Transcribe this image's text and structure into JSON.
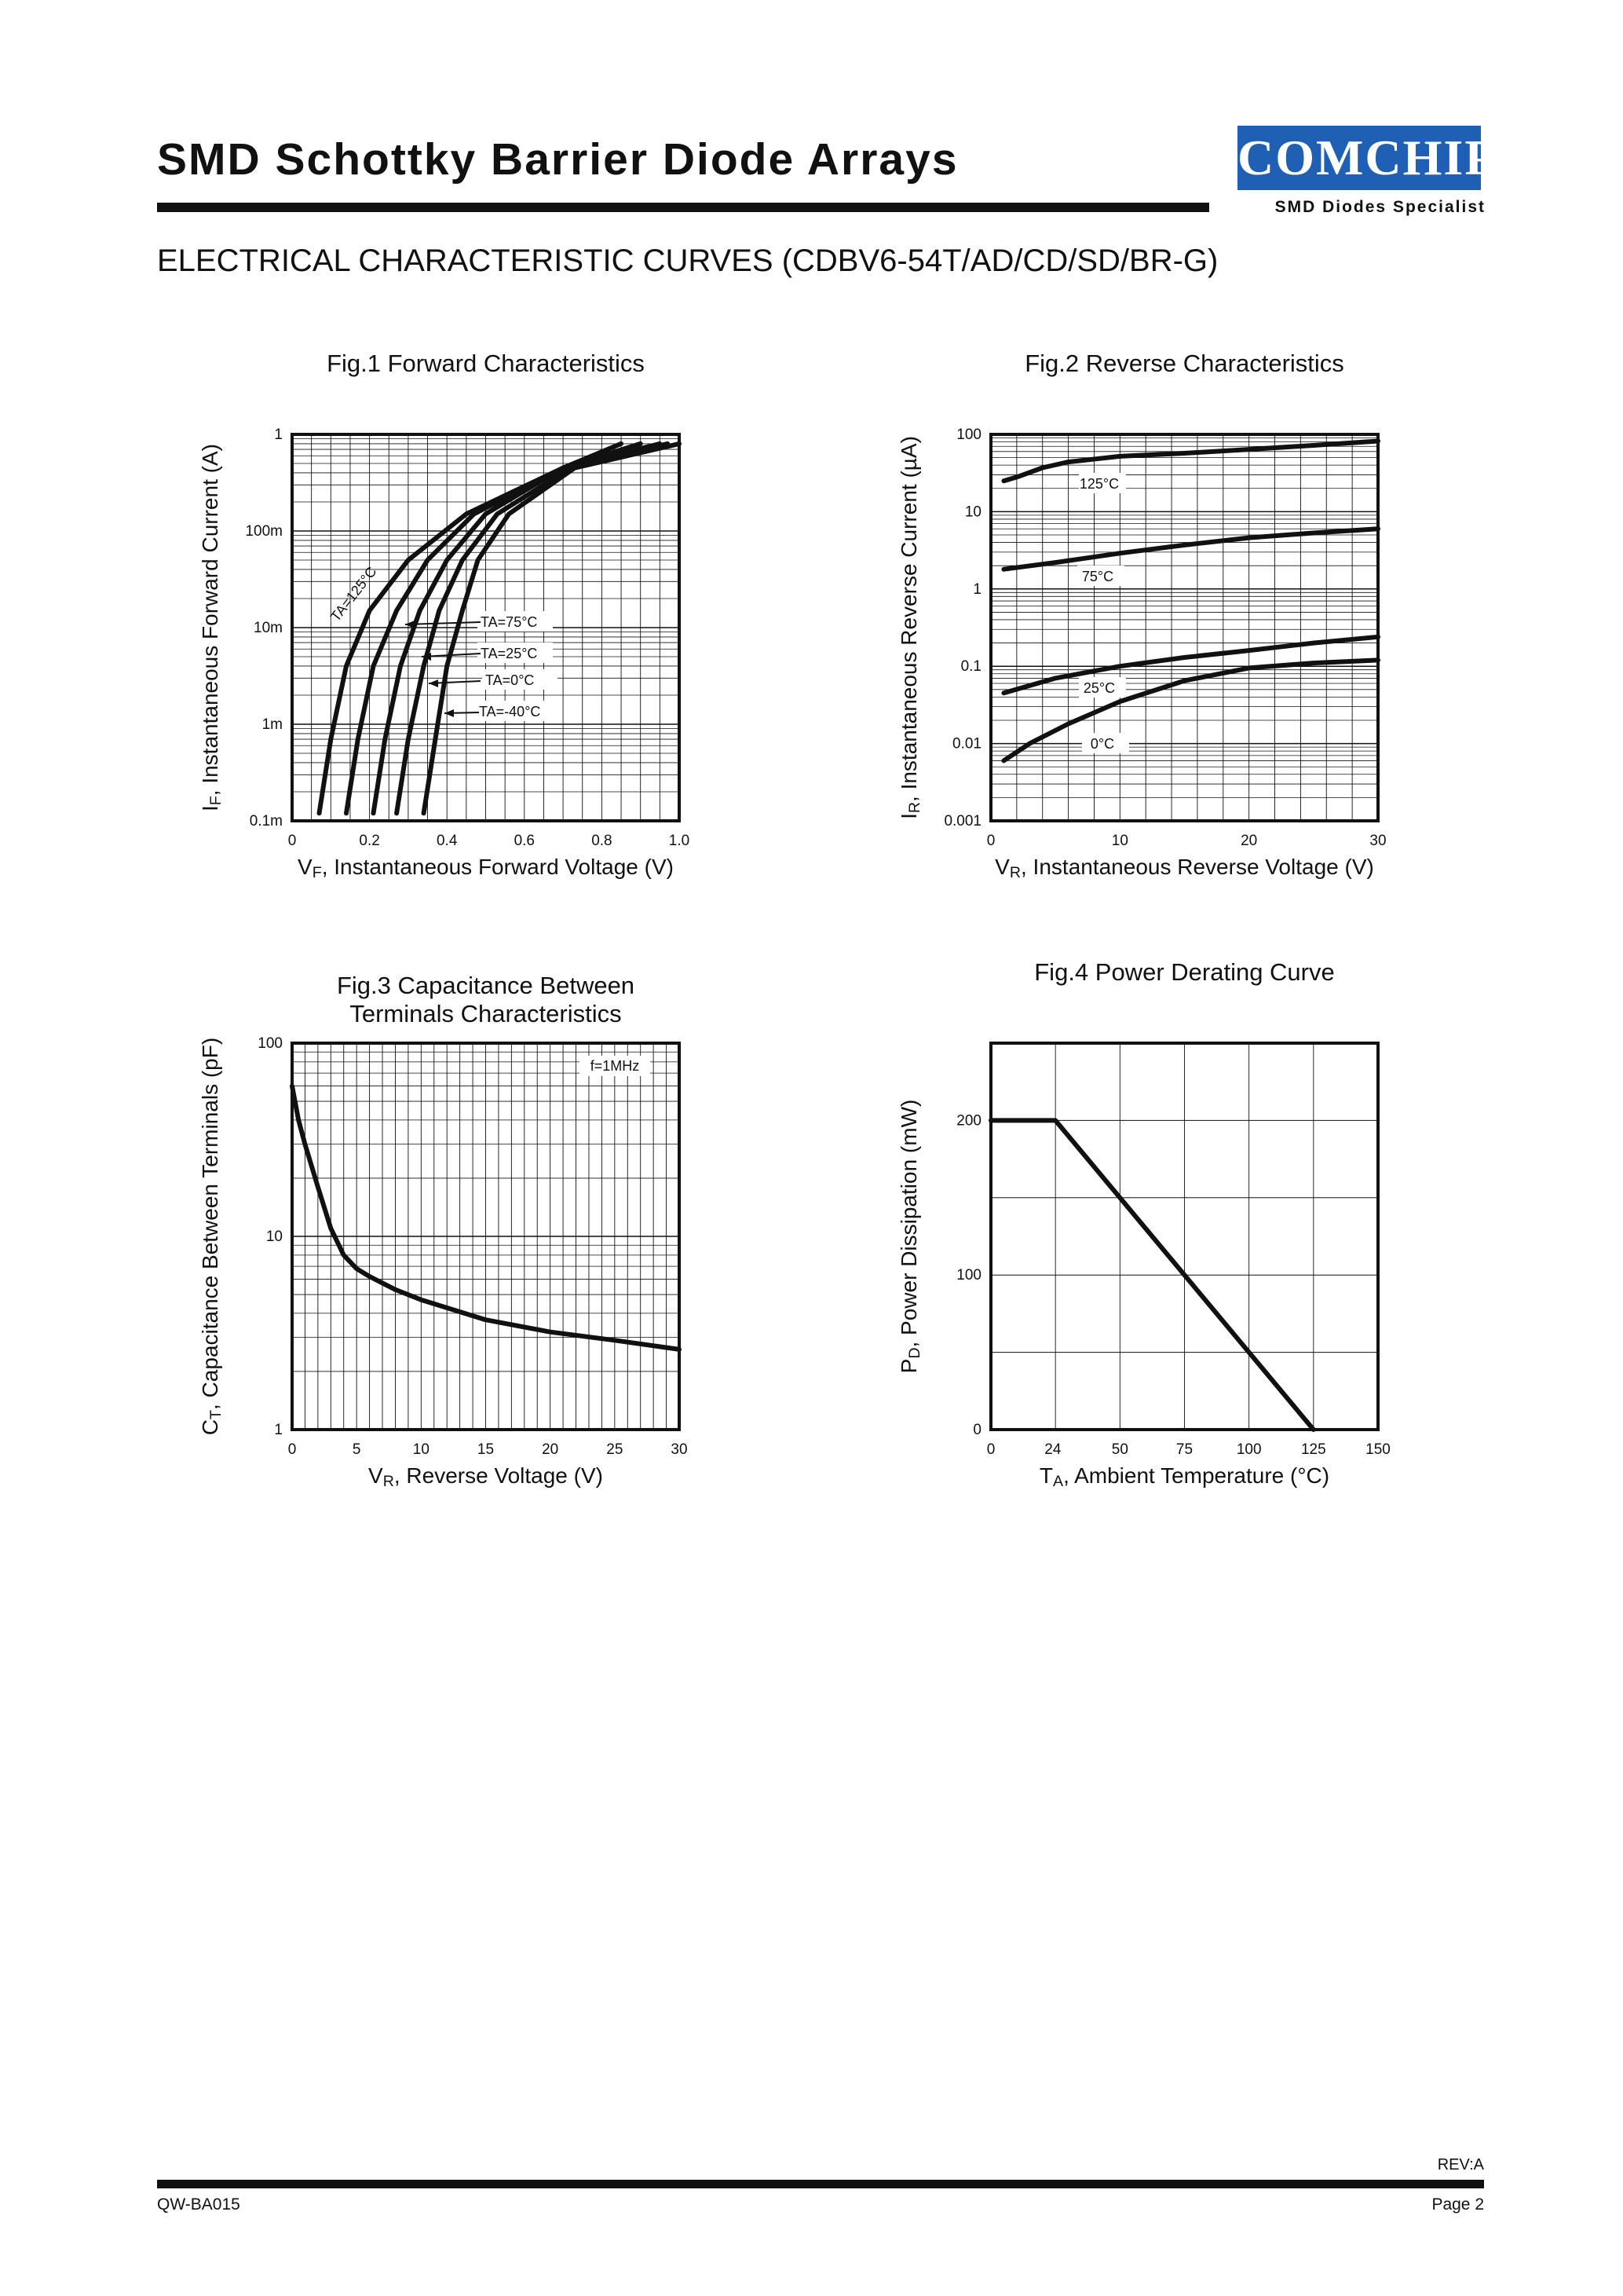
{
  "header": {
    "title": "SMD Schottky Barrier Diode Arrays",
    "logo_text": "COMCHIP",
    "logo_subtitle": "SMD Diodes Specialist",
    "logo_color": "#1f5fb4",
    "subtitle": "ELECTRICAL CHARACTERISTIC CURVES (CDBV6-54T/AD/CD/SD/BR-G)"
  },
  "footer": {
    "rev": "REV:A",
    "doc_number": "QW-BA015",
    "page": "Page 2"
  },
  "chart_data": [
    {
      "type": "line",
      "title": "Fig.1 Forward Characteristics",
      "xlabel": "VF, Instantaneous Forward Voltage (V)",
      "ylabel": "IF, Instantaneous Forward Current (A)",
      "x_scale": "linear",
      "y_scale": "log",
      "xlim": [
        0,
        1.0
      ],
      "ylim": [
        0.0001,
        1
      ],
      "x_ticks": [
        "0",
        "0.2",
        "0.4",
        "0.6",
        "0.8",
        "1.0"
      ],
      "y_ticks": [
        "0.1m",
        "1m",
        "10m",
        "100m",
        "1"
      ],
      "series": [
        {
          "name": "TA=125°C",
          "x": [
            0.07,
            0.1,
            0.14,
            0.2,
            0.3,
            0.45,
            0.7,
            0.85
          ],
          "y": [
            0.00012,
            0.0007,
            0.004,
            0.015,
            0.05,
            0.15,
            0.45,
            0.8
          ]
        },
        {
          "name": "TA=75°C",
          "x": [
            0.14,
            0.17,
            0.21,
            0.27,
            0.35,
            0.47,
            0.7,
            0.9
          ],
          "y": [
            0.00012,
            0.0007,
            0.004,
            0.015,
            0.05,
            0.15,
            0.45,
            0.8
          ]
        },
        {
          "name": "TA=25°C",
          "x": [
            0.21,
            0.24,
            0.28,
            0.33,
            0.4,
            0.5,
            0.7,
            0.95
          ],
          "y": [
            0.00012,
            0.0007,
            0.004,
            0.015,
            0.05,
            0.15,
            0.45,
            0.8
          ]
        },
        {
          "name": "TA=0°C",
          "x": [
            0.27,
            0.3,
            0.34,
            0.38,
            0.44,
            0.53,
            0.72,
            0.97
          ],
          "y": [
            0.00012,
            0.0007,
            0.004,
            0.015,
            0.05,
            0.15,
            0.45,
            0.8
          ]
        },
        {
          "name": "TA=-40°C",
          "x": [
            0.34,
            0.37,
            0.4,
            0.44,
            0.48,
            0.56,
            0.73,
            1.0
          ],
          "y": [
            0.00012,
            0.0007,
            0.004,
            0.015,
            0.05,
            0.15,
            0.45,
            0.8
          ]
        }
      ]
    },
    {
      "type": "line",
      "title": "Fig.2 Reverse Characteristics",
      "xlabel": "VR, Instantaneous Reverse Voltage (V)",
      "ylabel": "IR, Instantaneous Reverse Current (µA)",
      "x_scale": "linear",
      "y_scale": "log",
      "xlim": [
        0,
        30
      ],
      "ylim": [
        0.001,
        100
      ],
      "x_ticks": [
        "0",
        "10",
        "20",
        "30"
      ],
      "y_ticks": [
        "0.001",
        "0.01",
        "0.1",
        "1",
        "10",
        "100"
      ],
      "series": [
        {
          "name": "125°C",
          "x": [
            1,
            2,
            4,
            6,
            10,
            15,
            20,
            25,
            30
          ],
          "y": [
            25,
            28,
            37,
            44,
            52,
            57,
            64,
            72,
            82
          ]
        },
        {
          "name": "75°C",
          "x": [
            1,
            5,
            10,
            15,
            20,
            25,
            30
          ],
          "y": [
            1.8,
            2.2,
            2.9,
            3.7,
            4.6,
            5.3,
            6.0
          ]
        },
        {
          "name": "25°C",
          "x": [
            1,
            5,
            10,
            15,
            20,
            25,
            30
          ],
          "y": [
            0.045,
            0.07,
            0.1,
            0.13,
            0.16,
            0.2,
            0.24
          ]
        },
        {
          "name": "0°C",
          "x": [
            1,
            3,
            6,
            10,
            15,
            20,
            25,
            30
          ],
          "y": [
            0.006,
            0.01,
            0.018,
            0.035,
            0.065,
            0.095,
            0.11,
            0.12
          ]
        }
      ]
    },
    {
      "type": "line",
      "title": "Fig.3 Capacitance Between Terminals Characteristics",
      "title_lines": [
        "Fig.3 Capacitance Between",
        "Terminals Characteristics"
      ],
      "annotation": "f=1MHz",
      "xlabel": "VR, Reverse Voltage (V)",
      "ylabel": "CT, Capacitance Between Terminals (pF)",
      "x_scale": "linear",
      "y_scale": "log",
      "xlim": [
        0,
        30
      ],
      "ylim": [
        1,
        100
      ],
      "x_ticks": [
        "0",
        "5",
        "10",
        "15",
        "20",
        "25",
        "30"
      ],
      "y_ticks": [
        "1",
        "10",
        "100"
      ],
      "series": [
        {
          "name": "CT",
          "x": [
            0,
            0.5,
            1,
            2,
            3,
            4,
            5,
            6,
            8,
            10,
            15,
            20,
            25,
            30
          ],
          "y": [
            60,
            40,
            30,
            18,
            11,
            8,
            6.8,
            6.2,
            5.3,
            4.7,
            3.7,
            3.2,
            2.9,
            2.6
          ]
        }
      ]
    },
    {
      "type": "line",
      "title": "Fig.4 Power Derating Curve",
      "xlabel": "TA, Ambient Temperature (°C)",
      "ylabel": "PD, Power Dissipation (mW)",
      "x_scale": "linear",
      "y_scale": "linear",
      "xlim": [
        0,
        150
      ],
      "ylim": [
        0,
        250
      ],
      "x_ticks": [
        "0",
        "24",
        "50",
        "75",
        "100",
        "125",
        "150"
      ],
      "y_ticks": [
        "0",
        "100",
        "200"
      ],
      "series": [
        {
          "name": "PD",
          "x": [
            0,
            25,
            125
          ],
          "y": [
            200,
            200,
            0
          ]
        }
      ]
    }
  ]
}
